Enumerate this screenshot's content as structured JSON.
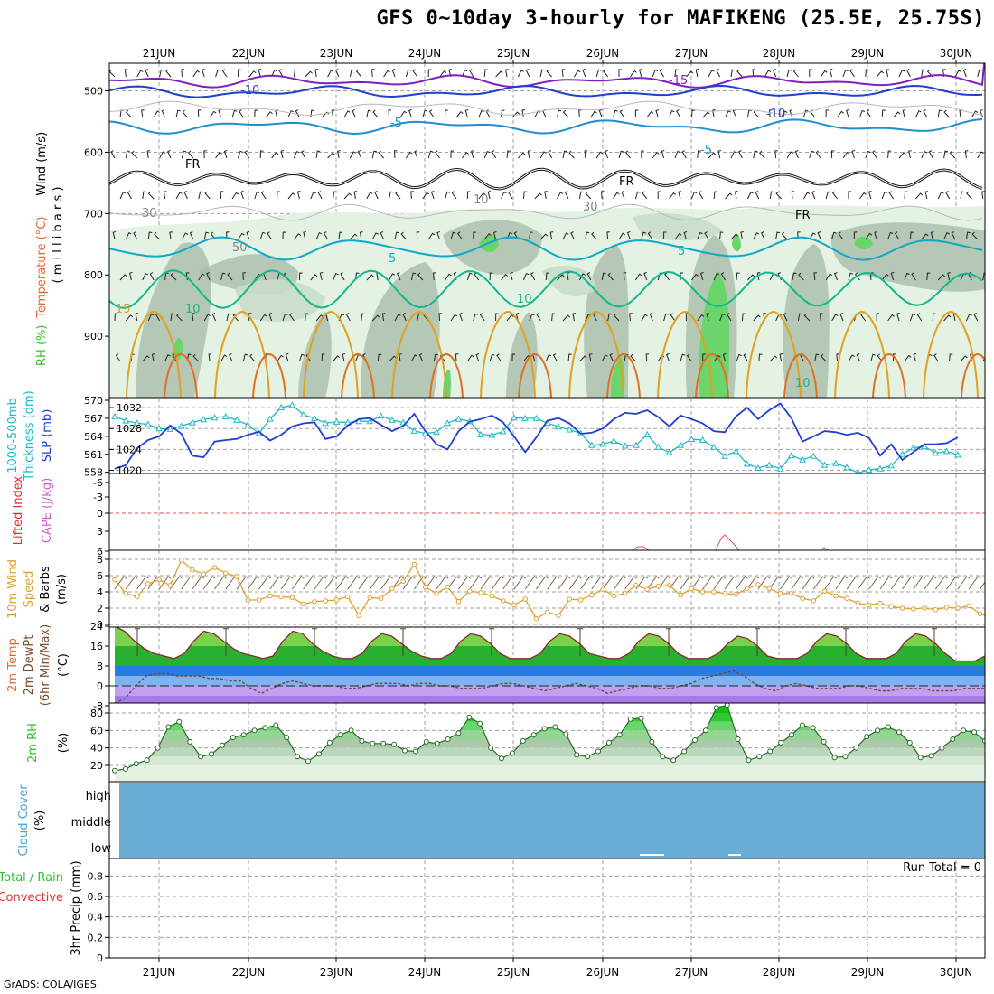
{
  "title": "GFS 0~10day 3-hourly for MAFIKENG (25.5E, 25.75S)",
  "credit": "GrADS: COLA/IGES",
  "dates": [
    "21JUN",
    "22JUN",
    "23JUN",
    "24JUN",
    "25JUN",
    "26JUN",
    "27JUN",
    "28JUN",
    "29JUN",
    "30JUN"
  ],
  "colors": {
    "frame": "#000000",
    "grid": "#a0a0a0",
    "rh_fill": [
      "#e4f2e4",
      "#c9dcc9",
      "#a9bca9",
      "#6bd46b"
    ],
    "temp_line": "#1f3fd0",
    "temp_cyan": "#10a8c8",
    "temp_green": "#10b890",
    "temp_orange": "#e0a020",
    "slp": "#1f3fd0",
    "thickness": "#20b8c8",
    "cape": "#d060d0",
    "lifted": "#e03030",
    "wind10": "#e0a030",
    "temp2m": "#5a3a2a",
    "rh2m": "#30c030",
    "cloud": "#6aaed6"
  },
  "chart_data": [
    {
      "id": "upper-air",
      "type": "heatmap",
      "ylabel_parts": [
        {
          "text": "RH (%)",
          "color": "#30c030"
        },
        {
          "text": "Temperature (°C)",
          "color": "#e06a30"
        },
        {
          "text": "Wind (m/s)",
          "color": "#000000"
        }
      ],
      "ylabel2": "( m i l l i b a r s )",
      "y_ticks": [
        500,
        600,
        700,
        800,
        900
      ],
      "ylim": [
        1000,
        455
      ],
      "contour_labels": [
        "-15",
        "-10",
        "-10",
        "-5",
        "-5",
        "FR",
        "FR",
        "FR",
        "5",
        "5",
        "10",
        "10",
        "10",
        "15",
        "30",
        "30",
        "50",
        "10"
      ]
    },
    {
      "id": "slp-thickness",
      "type": "line",
      "ylabel_left": "Thickness (dm)",
      "ylabel_left2": "1000-500mb",
      "ylabel_right": "SLP (mb)",
      "left_ticks": [
        558,
        561,
        564,
        567,
        570
      ],
      "right_ticks": [
        1020,
        1024,
        1028,
        1032
      ],
      "series": [
        {
          "name": "SLP",
          "values": [
            1020.3,
            1021.0,
            1024.2,
            1025.8,
            1026.5,
            1028.6,
            1027.0,
            1022.8,
            1022.5,
            1025.5,
            1025.8,
            1026.0,
            1026.8,
            1027.4,
            1025.7,
            1026.8,
            1028.4,
            1029.0,
            1029.2,
            1026.0,
            1026.5,
            1028.6,
            1029.8,
            1030.0,
            1028.7,
            1027.5,
            1028.5,
            1030.8,
            1027.5,
            1025.0,
            1024.0,
            1027.5,
            1029.3,
            1029.8,
            1030.5,
            1029.2,
            1026.5,
            1023.5,
            1026.3,
            1029.5,
            1030.0,
            1029.0,
            1027.0,
            1027.2,
            1028.0,
            1029.8,
            1031.0,
            1030.8,
            1031.5,
            1030.2,
            1028.4,
            1030.5,
            1029.8,
            1029.0,
            1027.5,
            1027.3,
            1030.3,
            1032.0,
            1029.8,
            1031.5,
            1032.8,
            1030.0,
            1025.5,
            1026.5,
            1027.5,
            1027.3,
            1026.8,
            1027.2,
            1026.2,
            1022.8,
            1025.0,
            1022.0,
            1023.5,
            1025.0,
            1025.0,
            1025.2,
            1026.3
          ]
        },
        {
          "name": "Thickness",
          "values": [
            567.3,
            566.6,
            566.2,
            566.0,
            565.3,
            565.2,
            565.7,
            566.3,
            566.8,
            567.1,
            567.3,
            566.7,
            565.9,
            564.5,
            566.9,
            568.8,
            569.2,
            567.6,
            567.0,
            566.2,
            566.4,
            566.3,
            566.5,
            566.5,
            567.4,
            566.7,
            566.3,
            564.9,
            564.5,
            564.7,
            566.2,
            566.9,
            566.5,
            564.3,
            564.2,
            564.8,
            567.1,
            567.0,
            567.0,
            566.2,
            565.6,
            565.1,
            564.5,
            562.5,
            562.7,
            563.2,
            562.4,
            562.5,
            564.3,
            562.2,
            561.3,
            562.5,
            563.5,
            563.4,
            562.2,
            560.7,
            561.5,
            559.4,
            558.7,
            559.2,
            558.6,
            560.8,
            560.1,
            560.7,
            559.2,
            559.5,
            558.8,
            557.9,
            558.4,
            558.6,
            559.1,
            561.0,
            562.1,
            562.3,
            561.2,
            561.5,
            560.9
          ]
        }
      ]
    },
    {
      "id": "cape-li",
      "type": "line",
      "ylabel_left": "Lifted Index",
      "ylabel_right": "CAPE (J/kg)",
      "y_ticks": [
        "-6",
        "-3",
        "0",
        "3",
        "6"
      ],
      "series": [
        {
          "name": "Lifted Index",
          "values": [
            0,
            0,
            0,
            0,
            0,
            0,
            0,
            0,
            0,
            0,
            0,
            0,
            0,
            0,
            0,
            0,
            0,
            0,
            0,
            0,
            0,
            0,
            0,
            0,
            0,
            0,
            0,
            0,
            0,
            0,
            0,
            0,
            0,
            0,
            0,
            0,
            0,
            0,
            0,
            0,
            0,
            0,
            0,
            0,
            0,
            0,
            0,
            0,
            0,
            0,
            0,
            0,
            0,
            0,
            0,
            0,
            0,
            0,
            0,
            0,
            0,
            0,
            0,
            0,
            0,
            0,
            0,
            0,
            0,
            0,
            0,
            0,
            0,
            0,
            0,
            0,
            0
          ]
        },
        {
          "name": "CAPE",
          "values": [
            0,
            0,
            0,
            0,
            0,
            0,
            0,
            0,
            0,
            0,
            0,
            0,
            0,
            0,
            0,
            0,
            0,
            0,
            0,
            0,
            0,
            0,
            0,
            0,
            0,
            0,
            0,
            0,
            0,
            0,
            0,
            0,
            0,
            0,
            0,
            0,
            0,
            0,
            0,
            0,
            0,
            0,
            0,
            0,
            0,
            0,
            0,
            0,
            0,
            0,
            0,
            0,
            0,
            0,
            0,
            0,
            0,
            0,
            0,
            0,
            0,
            0,
            0,
            0,
            0,
            0,
            0,
            0,
            0,
            0,
            0,
            0,
            0,
            0,
            0,
            0,
            0
          ]
        }
      ]
    },
    {
      "id": "wind10m",
      "type": "line",
      "ylabel_lines": [
        "10m Wind",
        "Speed",
        "& Barbs"
      ],
      "yunit": "(m/s)",
      "y_ticks": [
        0,
        2,
        4,
        6,
        8
      ],
      "series": [
        {
          "name": "10m Wind Speed",
          "values": [
            5.5,
            3.8,
            3.4,
            5.0,
            5.5,
            4.8,
            7.9,
            6.7,
            6.2,
            7.0,
            6.3,
            5.9,
            3.0,
            3.0,
            3.5,
            3.4,
            3.3,
            2.5,
            2.8,
            2.9,
            3.0,
            3.4,
            1.1,
            3.3,
            3.2,
            4.4,
            5.3,
            7.4,
            4.6,
            3.8,
            4.6,
            2.8,
            4.1,
            3.9,
            3.5,
            2.9,
            2.4,
            3.1,
            0.7,
            1.5,
            1.1,
            3.1,
            3.0,
            3.6,
            4.3,
            3.5,
            3.8,
            4.8,
            4.3,
            4.7,
            4.8,
            3.6,
            4.4,
            4.0,
            4.0,
            3.8,
            3.7,
            4.4,
            4.9,
            4.4,
            3.8,
            3.8,
            3.2,
            2.9,
            4.1,
            3.5,
            3.2,
            2.6,
            2.4,
            2.6,
            2.2,
            2.0,
            1.9,
            2.0,
            1.8,
            2.1,
            2.0,
            2.3,
            1.3,
            0.9,
            0.4
          ]
        }
      ]
    },
    {
      "id": "temp2m",
      "type": "area",
      "ylabel_lines": [
        "2m Temp",
        "2m DewPt",
        "(6hr Min/Max)"
      ],
      "yunit": "(°C)",
      "y_ticks": [
        -8,
        0,
        8,
        16,
        24
      ],
      "series": [
        {
          "name": "2m Temp",
          "values": [
            24,
            22,
            18,
            15,
            13,
            12,
            11,
            13,
            18,
            22,
            21,
            18,
            15,
            13,
            12,
            11,
            12,
            18,
            22,
            21,
            17,
            14,
            12,
            11,
            11,
            13,
            18,
            21,
            20,
            17,
            14,
            12,
            11,
            11,
            13,
            18,
            21,
            20,
            17,
            13,
            11,
            11,
            11,
            13,
            18,
            21,
            20,
            17,
            13,
            12,
            11,
            11,
            13,
            18,
            21,
            20,
            17,
            13,
            11,
            11,
            11,
            13,
            17,
            20,
            19,
            16,
            12,
            11,
            11,
            11,
            13,
            18,
            21,
            20,
            17,
            13,
            11,
            11,
            11,
            13,
            18,
            21,
            20,
            17,
            13,
            10,
            10,
            10,
            12
          ]
        },
        {
          "name": "2m DewPt",
          "values": [
            -7,
            -5,
            0,
            4,
            5,
            5,
            4,
            4,
            4,
            3,
            3,
            2,
            2,
            -1,
            -3,
            -1,
            1,
            2,
            1,
            0,
            0,
            0,
            -1,
            -1,
            0,
            1,
            1,
            1,
            0,
            1,
            1,
            0,
            0,
            -1,
            -1,
            -1,
            0,
            1,
            1,
            0,
            -1,
            -2,
            -1,
            0,
            1,
            0,
            -1,
            -3,
            -2,
            -1,
            0,
            0,
            -1,
            -1,
            0,
            1,
            3,
            4,
            5,
            6,
            4,
            1,
            -1,
            -2,
            0,
            1,
            0,
            -1,
            -1,
            -1,
            0,
            0,
            -1,
            -2,
            -2,
            -1,
            -1,
            -1,
            -2,
            -2,
            -2,
            -1,
            -1,
            -1
          ]
        }
      ]
    },
    {
      "id": "rh2m",
      "type": "area",
      "ylabel": "2m RH",
      "yunit": "(%)",
      "y_ticks": [
        20,
        40,
        60,
        80
      ],
      "series": [
        {
          "name": "2m RH",
          "values": [
            14,
            16,
            22,
            26,
            40,
            64,
            70,
            47,
            30,
            33,
            43,
            52,
            55,
            60,
            63,
            66,
            52,
            30,
            25,
            33,
            46,
            55,
            60,
            48,
            45,
            45,
            44,
            37,
            36,
            47,
            45,
            50,
            57,
            75,
            68,
            40,
            28,
            34,
            48,
            55,
            62,
            64,
            56,
            32,
            30,
            36,
            46,
            55,
            73,
            74,
            47,
            30,
            26,
            36,
            49,
            60,
            86,
            89,
            50,
            26,
            30,
            36,
            46,
            55,
            66,
            63,
            47,
            29,
            30,
            40,
            53,
            60,
            64,
            58,
            46,
            29,
            31,
            40,
            50,
            60,
            58,
            48
          ]
        }
      ]
    },
    {
      "id": "cloud",
      "type": "heatmap",
      "ylabel": "Cloud Cover",
      "yunit": "(%)",
      "levels": [
        "high",
        "middle",
        "low"
      ]
    },
    {
      "id": "precip",
      "type": "bar",
      "ylabel_left_lines": [
        "Total / Rain",
        "Convective"
      ],
      "ylabel": "3hr Precip (mm)",
      "y_ticks": [
        "0",
        "0.2",
        "0.4",
        "0.6",
        "0.8"
      ],
      "run_total": "Run Total = 0",
      "values": []
    }
  ]
}
